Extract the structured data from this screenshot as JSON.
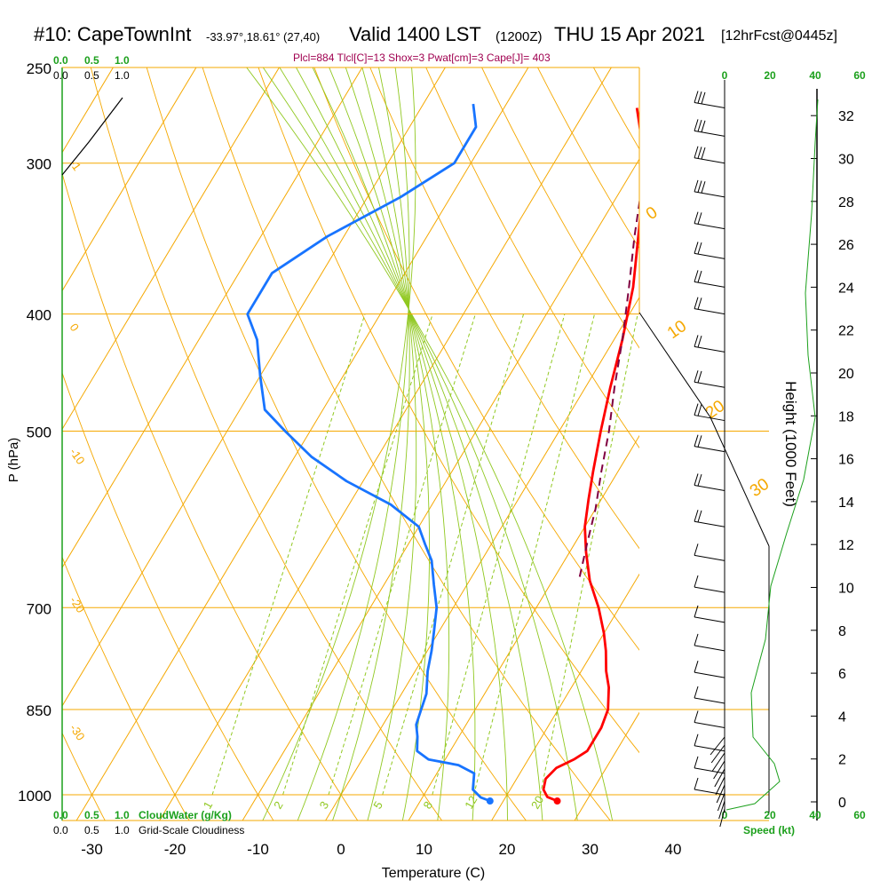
{
  "header": {
    "station": "#10: CapeTownInt",
    "coords": "-33.97°,18.61° (27,40)",
    "valid": "Valid 1400 LST",
    "utc": "(1200Z)",
    "date": "THU 15 Apr 2021",
    "forecast": "[12hrFcst@0445z]",
    "indices": "Plcl=884 Tlcl[C]=13 Shox=3 Pwat[cm]=3 Cape[J]= 403"
  },
  "chart_data": {
    "type": "line",
    "title": "#10: CapeTownInt -33.97°,18.61° (27,40) Valid 1400 LST (1200Z) THU 15 Apr 2021 [12hrFcst@0445z]",
    "xlabel": "Temperature (C)",
    "ylabel": "P (hPa)",
    "y2label": "Height (1000 Feet)",
    "xlim": [
      -35,
      36
    ],
    "ylim": [
      1050,
      250
    ],
    "y_scale": "log",
    "x_ticks": [
      -30,
      -20,
      -10,
      0,
      10,
      20,
      30,
      40
    ],
    "pressure_ticks": [
      250,
      300,
      400,
      500,
      700,
      850,
      1000
    ],
    "height_ticks": [
      0,
      2,
      4,
      6,
      8,
      10,
      12,
      14,
      16,
      18,
      20,
      22,
      24,
      26,
      28,
      30,
      32
    ],
    "cloudwater_ticks": [
      "0.0",
      "0.5",
      "1.0"
    ],
    "cloudwater_label": "CloudWater (g/Kg)",
    "cloudiness_ticks": [
      "0.0",
      "0.5",
      "1.0"
    ],
    "cloudiness_label": "Grid-Scale Cloudiness",
    "speed_ticks": [
      "0",
      "20",
      "40",
      "60"
    ],
    "speed_label": "Speed (kt)",
    "dry_adiabat_labels": [
      "0",
      "10",
      "20",
      "30"
    ],
    "mixing_ratio_labels": [
      "1",
      "2",
      "3",
      "5",
      "8",
      "12",
      "20"
    ],
    "mixing_ratio_values": [
      1,
      2,
      3,
      5,
      8,
      12,
      20
    ],
    "isotherm_labels": [
      {
        "text": "-1",
        "p": 300
      },
      {
        "text": "0",
        "p": 410
      },
      {
        "text": "-10",
        "p": 520
      },
      {
        "text": "-20",
        "p": 690
      },
      {
        "text": "-30",
        "p": 880
      }
    ],
    "series": [
      {
        "name": "Temperature",
        "color": "#ff0000",
        "points": [
          [
            26.5,
            1012
          ],
          [
            25,
            1004
          ],
          [
            24,
            990
          ],
          [
            23.5,
            970
          ],
          [
            24,
            950
          ],
          [
            25.5,
            935
          ],
          [
            26.5,
            920
          ],
          [
            26.5,
            880
          ],
          [
            26,
            850
          ],
          [
            24.5,
            815
          ],
          [
            23,
            790
          ],
          [
            21.5,
            760
          ],
          [
            20,
            735
          ],
          [
            17.5,
            700
          ],
          [
            14.5,
            665
          ],
          [
            12,
            630
          ],
          [
            10,
            600
          ],
          [
            8.5,
            570
          ],
          [
            7,
            540
          ],
          [
            5,
            500
          ],
          [
            3,
            460
          ],
          [
            1,
            420
          ],
          [
            -1.5,
            380
          ],
          [
            -5,
            340
          ],
          [
            -9,
            300
          ],
          [
            -14,
            270
          ]
        ]
      },
      {
        "name": "Dewpoint",
        "color": "#1874ff",
        "points": [
          [
            18.4,
            1012
          ],
          [
            17,
            1005
          ],
          [
            15.5,
            990
          ],
          [
            14.5,
            960
          ],
          [
            12,
            945
          ],
          [
            8,
            935
          ],
          [
            6,
            920
          ],
          [
            5,
            895
          ],
          [
            4,
            875
          ],
          [
            3.5,
            850
          ],
          [
            3,
            825
          ],
          [
            1.5,
            790
          ],
          [
            0.5,
            760
          ],
          [
            -0.5,
            735
          ],
          [
            -2,
            700
          ],
          [
            -4,
            670
          ],
          [
            -6,
            640
          ],
          [
            -8,
            620
          ],
          [
            -10,
            600
          ],
          [
            -15,
            575
          ],
          [
            -22,
            550
          ],
          [
            -28,
            525
          ],
          [
            -33,
            500
          ],
          [
            -37,
            480
          ],
          [
            -40,
            450
          ],
          [
            -43,
            420
          ],
          [
            -46,
            400
          ],
          [
            -46,
            370
          ],
          [
            -42,
            345
          ],
          [
            -36,
            320
          ],
          [
            -32,
            300
          ],
          [
            -32,
            280
          ],
          [
            -34,
            268
          ]
        ]
      },
      {
        "name": "Parcel",
        "color": "#800040",
        "dashed": true,
        "points": [
          [
            13,
            660
          ],
          [
            11.5,
            620
          ],
          [
            10,
            580
          ],
          [
            8,
            540
          ],
          [
            6,
            500
          ],
          [
            3.5,
            460
          ],
          [
            1,
            420
          ],
          [
            -2,
            380
          ],
          [
            -5,
            345
          ],
          [
            -9,
            300
          ]
        ]
      }
    ],
    "wind_barbs": [
      {
        "p": 270,
        "barbs": 3,
        "pennant": false
      },
      {
        "p": 285,
        "barbs": 3,
        "pennant": false
      },
      {
        "p": 300,
        "barbs": 3,
        "pennant": false
      },
      {
        "p": 320,
        "barbs": 3,
        "pennant": false
      },
      {
        "p": 340,
        "barbs": 2,
        "pennant": false
      },
      {
        "p": 360,
        "barbs": 2,
        "pennant": false
      },
      {
        "p": 380,
        "barbs": 2,
        "pennant": false
      },
      {
        "p": 400,
        "barbs": 2,
        "pennant": false
      },
      {
        "p": 430,
        "barbs": 2,
        "pennant": false
      },
      {
        "p": 460,
        "barbs": 2,
        "pennant": false
      },
      {
        "p": 490,
        "barbs": 2,
        "pennant": false
      },
      {
        "p": 520,
        "barbs": 2,
        "pennant": false
      },
      {
        "p": 560,
        "barbs": 2,
        "pennant": false
      },
      {
        "p": 600,
        "barbs": 2,
        "pennant": false
      },
      {
        "p": 640,
        "barbs": 1,
        "pennant": false
      },
      {
        "p": 680,
        "barbs": 1,
        "pennant": false
      },
      {
        "p": 720,
        "barbs": 1,
        "pennant": false
      },
      {
        "p": 760,
        "barbs": 1,
        "pennant": false
      },
      {
        "p": 800,
        "barbs": 1,
        "pennant": false
      },
      {
        "p": 840,
        "barbs": 1,
        "pennant": false
      },
      {
        "p": 880,
        "barbs": 1,
        "pennant": false
      },
      {
        "p": 920,
        "barbs": 1,
        "pennant": false
      },
      {
        "p": 960,
        "barbs": 1,
        "pennant": false
      },
      {
        "p": 1000,
        "barbs": 1,
        "pennant": false
      }
    ],
    "colors": {
      "isobar": "#f5a800",
      "isotherm": "#f5a800",
      "mixing_ratio": "#90c820",
      "moist_adiabat": "#90c820",
      "cloudwater": "#1ca01c",
      "speed": "#1ca01c"
    }
  }
}
